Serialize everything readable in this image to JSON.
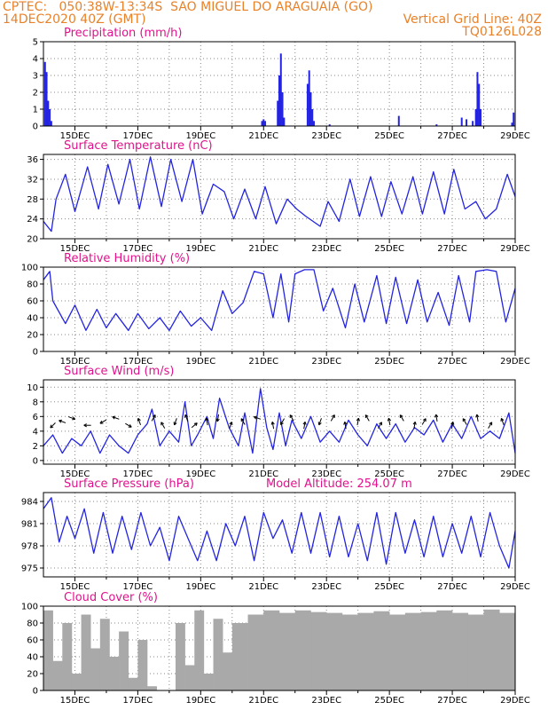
{
  "header": {
    "line1_left": "CPTEC:   050:38W-13:34S  SAO MIGUEL DO ARAGUAIA (GO)",
    "line2_left": "14DEC2020 40Z (GMT)",
    "line2_right": "Vertical Grid Line: 40Z",
    "line3_right": "TQ0126L028"
  },
  "x_labels": [
    "15DEC",
    "17DEC",
    "19DEC",
    "21DEC",
    "23DEC",
    "25DEC",
    "27DEC",
    "29DEC"
  ],
  "colors": {
    "line": "#2424e0",
    "bar": "#2424e0",
    "cloud": "#a9a9a9",
    "title": "#e0138c",
    "header": "#e8822a"
  },
  "chart_data": [
    {
      "id": "precip",
      "type": "bar",
      "title": "Precipitation (mm/h)",
      "ylim": [
        0,
        5
      ],
      "yticks": [
        0,
        1,
        2,
        3,
        4,
        5
      ],
      "x_range_days": [
        14,
        29
      ],
      "x": [
        14.05,
        14.1,
        14.15,
        14.2,
        14.25,
        20.95,
        21.0,
        21.05,
        21.45,
        21.5,
        21.55,
        21.6,
        21.65,
        22.4,
        22.45,
        22.5,
        22.55,
        22.6,
        23.1,
        25.3,
        26.5,
        27.3,
        27.45,
        27.65,
        27.75,
        27.8,
        27.85,
        27.9,
        28.9,
        28.95
      ],
      "values": [
        3.8,
        3.2,
        1.5,
        1.0,
        0.3,
        0.3,
        0.4,
        0.3,
        1.5,
        3.0,
        4.3,
        2.0,
        0.5,
        2.5,
        3.3,
        2.0,
        1.0,
        0.3,
        0.1,
        0.6,
        0.1,
        0.5,
        0.4,
        0.3,
        1.0,
        3.2,
        2.5,
        1.0,
        0.2,
        0.8
      ]
    },
    {
      "id": "temp",
      "type": "line",
      "title": "Surface Temperature (nC)",
      "ylim": [
        20,
        37
      ],
      "yticks": [
        20,
        24,
        28,
        32,
        36
      ],
      "x_range_days": [
        14,
        29
      ],
      "x": [
        14.0,
        14.25,
        14.4,
        14.7,
        15.0,
        15.4,
        15.75,
        16.05,
        16.4,
        16.75,
        17.05,
        17.4,
        17.75,
        18.05,
        18.4,
        18.75,
        19.05,
        19.4,
        19.75,
        20.05,
        20.4,
        20.75,
        21.05,
        21.4,
        21.75,
        22.05,
        22.35,
        22.8,
        23.05,
        23.4,
        23.75,
        24.05,
        24.4,
        24.75,
        25.05,
        25.4,
        25.75,
        26.05,
        26.4,
        26.75,
        27.05,
        27.4,
        27.75,
        28.05,
        28.4,
        28.75,
        29.0
      ],
      "values": [
        23.5,
        21.5,
        28.0,
        33.0,
        25.5,
        34.5,
        26.0,
        35.0,
        27.0,
        36.0,
        26.0,
        36.5,
        26.5,
        36.0,
        27.5,
        36.0,
        25.0,
        31.0,
        29.5,
        24.0,
        30.0,
        24.0,
        30.5,
        23.0,
        28.0,
        26.0,
        24.5,
        22.5,
        27.5,
        23.5,
        32.0,
        24.5,
        32.5,
        24.5,
        31.5,
        25.0,
        32.5,
        25.0,
        33.5,
        25.0,
        34.0,
        26.0,
        27.5,
        24.0,
        26.0,
        33.0,
        28.5
      ]
    },
    {
      "id": "rh",
      "type": "line",
      "title": "Relative Humidity (%)",
      "ylim": [
        0,
        100
      ],
      "yticks": [
        0,
        20,
        40,
        60,
        80,
        100
      ],
      "x_range_days": [
        14,
        29
      ],
      "x": [
        14.0,
        14.2,
        14.3,
        14.7,
        15.0,
        15.35,
        15.7,
        16.0,
        16.3,
        16.7,
        17.0,
        17.35,
        17.7,
        18.0,
        18.35,
        18.7,
        19.0,
        19.35,
        19.7,
        20.0,
        20.35,
        20.7,
        21.0,
        21.3,
        21.55,
        21.8,
        22.0,
        22.3,
        22.6,
        22.9,
        23.2,
        23.6,
        23.9,
        24.2,
        24.6,
        24.9,
        25.2,
        25.55,
        25.9,
        26.2,
        26.55,
        26.9,
        27.2,
        27.55,
        27.75,
        28.1,
        28.4,
        28.7,
        29.0
      ],
      "values": [
        85,
        95,
        60,
        33,
        55,
        25,
        50,
        28,
        45,
        25,
        45,
        27,
        40,
        25,
        48,
        30,
        40,
        25,
        72,
        45,
        58,
        95,
        92,
        40,
        92,
        35,
        92,
        97,
        97,
        48,
        75,
        28,
        80,
        35,
        90,
        33,
        88,
        33,
        85,
        35,
        70,
        31,
        90,
        35,
        95,
        97,
        95,
        35,
        75
      ]
    },
    {
      "id": "wind",
      "type": "line",
      "title": "Surface Wind (m/s)",
      "ylim": [
        -0.5,
        11
      ],
      "yticks": [
        0,
        2,
        4,
        6,
        8,
        10
      ],
      "x_range_days": [
        14,
        29
      ],
      "x": [
        14.0,
        14.3,
        14.6,
        14.9,
        15.2,
        15.5,
        15.8,
        16.1,
        16.4,
        16.7,
        17.0,
        17.3,
        17.45,
        17.7,
        18.0,
        18.3,
        18.5,
        18.7,
        18.9,
        19.2,
        19.4,
        19.6,
        19.9,
        20.2,
        20.4,
        20.65,
        20.9,
        21.1,
        21.3,
        21.5,
        21.7,
        21.9,
        22.2,
        22.5,
        22.8,
        23.1,
        23.4,
        23.7,
        24.0,
        24.3,
        24.6,
        24.9,
        25.2,
        25.5,
        25.8,
        26.1,
        26.4,
        26.7,
        27.0,
        27.3,
        27.6,
        27.9,
        28.2,
        28.5,
        28.8,
        29.0
      ],
      "values": [
        2.0,
        3.5,
        1.0,
        3.0,
        2.0,
        4.0,
        1.0,
        3.5,
        2.0,
        1.0,
        3.5,
        5.0,
        7.0,
        2.0,
        4.0,
        2.5,
        8.0,
        2.0,
        3.5,
        6.0,
        3.0,
        8.5,
        4.5,
        2.0,
        6.5,
        1.0,
        9.8,
        4.5,
        1.5,
        6.5,
        2.0,
        5.5,
        3.0,
        6.0,
        2.5,
        4.0,
        2.5,
        5.5,
        3.5,
        2.0,
        5.0,
        3.0,
        5.0,
        2.5,
        4.5,
        3.5,
        5.5,
        2.5,
        5.0,
        3.0,
        6.0,
        3.0,
        4.0,
        3.0,
        6.5,
        1.0
      ]
    },
    {
      "id": "pres",
      "type": "line",
      "title": "Surface Pressure (hPa)",
      "annotation": "Model Altitude: 254.07 m",
      "ylim": [
        973.8,
        985.2
      ],
      "yticks": [
        975,
        978,
        981,
        984
      ],
      "x_range_days": [
        14,
        29
      ],
      "x": [
        14.0,
        14.25,
        14.5,
        14.75,
        15.0,
        15.3,
        15.6,
        15.9,
        16.2,
        16.5,
        16.8,
        17.1,
        17.4,
        17.7,
        18.0,
        18.3,
        18.6,
        18.9,
        19.2,
        19.5,
        19.8,
        20.1,
        20.4,
        20.7,
        21.0,
        21.3,
        21.6,
        21.9,
        22.2,
        22.5,
        22.8,
        23.1,
        23.4,
        23.7,
        24.0,
        24.3,
        24.6,
        24.9,
        25.2,
        25.5,
        25.8,
        26.1,
        26.4,
        26.7,
        27.0,
        27.3,
        27.6,
        27.9,
        28.2,
        28.5,
        28.8,
        29.0
      ],
      "values": [
        983.0,
        984.5,
        978.5,
        982.0,
        979.0,
        983.0,
        977.0,
        982.5,
        977.0,
        982.0,
        977.5,
        982.5,
        978.0,
        980.5,
        976.0,
        982.0,
        979.0,
        976.0,
        980.0,
        976.0,
        981.0,
        978.0,
        982.0,
        976.0,
        982.5,
        979.0,
        981.5,
        977.0,
        982.5,
        977.0,
        982.5,
        976.5,
        982.0,
        976.5,
        981.0,
        976.0,
        982.5,
        975.5,
        982.5,
        977.0,
        981.5,
        976.5,
        982.0,
        976.5,
        981.0,
        977.0,
        982.0,
        976.5,
        982.5,
        978.0,
        975.0,
        980.0
      ]
    },
    {
      "id": "cloud",
      "type": "bar",
      "title": "Cloud Cover (%)",
      "ylim": [
        0,
        100
      ],
      "yticks": [
        0,
        20,
        40,
        60,
        80,
        100
      ],
      "x_range_days": [
        14,
        29
      ],
      "x": [
        14.0,
        14.3,
        14.6,
        14.9,
        15.2,
        15.5,
        15.8,
        16.1,
        16.4,
        16.7,
        17.0,
        17.3,
        17.6,
        17.9,
        18.2,
        18.5,
        18.8,
        19.1,
        19.4,
        19.7,
        20.0,
        20.5,
        21.0,
        21.5,
        22.0,
        22.5,
        23.0,
        23.5,
        24.0,
        24.5,
        25.0,
        25.5,
        26.0,
        26.5,
        27.0,
        27.5,
        28.0,
        28.5,
        29.0
      ],
      "values": [
        95,
        35,
        80,
        20,
        90,
        50,
        85,
        40,
        70,
        15,
        60,
        5,
        0,
        0,
        80,
        30,
        95,
        20,
        85,
        45,
        80,
        90,
        95,
        92,
        95,
        93,
        92,
        90,
        92,
        94,
        90,
        92,
        93,
        95,
        92,
        90,
        96,
        92,
        95
      ]
    }
  ]
}
